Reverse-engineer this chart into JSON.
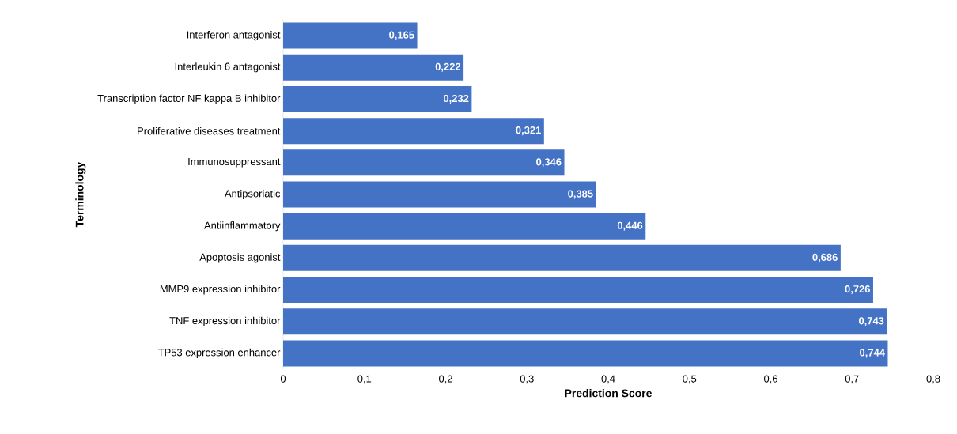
{
  "chart_data": {
    "type": "bar",
    "orientation": "horizontal",
    "xlabel": "Prediction Score",
    "ylabel": "Terminology",
    "categories": [
      "Interferon antagonist",
      "Interleukin 6 antagonist",
      "Transcription factor NF kappa B inhibitor",
      "Proliferative diseases treatment",
      "Immunosuppressant",
      "Antipsoriatic",
      "Antiinflammatory",
      "Apoptosis agonist",
      "MMP9 expression inhibitor",
      "TNF expression inhibitor",
      "TP53 expression enhancer"
    ],
    "values": [
      0.165,
      0.222,
      0.232,
      0.321,
      0.346,
      0.385,
      0.446,
      0.686,
      0.726,
      0.743,
      0.744
    ],
    "value_labels": [
      "0,165",
      "0,222",
      "0,232",
      "0,321",
      "0,346",
      "0,385",
      "0,446",
      "0,686",
      "0,726",
      "0,743",
      "0,744"
    ],
    "color": "#4472c4",
    "xlim": [
      0,
      0.8
    ],
    "xticks": [
      0,
      {
        "value": 0.1,
        "label": "0,1"
      },
      {
        "value": 0.2,
        "label": "0,2"
      },
      {
        "value": 0.3,
        "label": "0,3"
      },
      {
        "value": 0.4,
        "label": "0,4"
      },
      {
        "value": 0.5,
        "label": "0,5"
      },
      {
        "value": 0.6,
        "label": "0,6"
      },
      {
        "value": 0.7,
        "label": "0,7"
      },
      {
        "value": 0.8,
        "label": "0,8"
      }
    ],
    "grid": false
  }
}
